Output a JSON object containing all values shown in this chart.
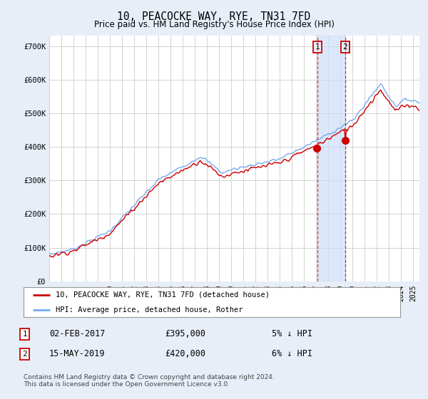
{
  "title": "10, PEACOCKE WAY, RYE, TN31 7FD",
  "subtitle": "Price paid vs. HM Land Registry's House Price Index (HPI)",
  "yticks": [
    0,
    100000,
    200000,
    300000,
    400000,
    500000,
    600000,
    700000
  ],
  "ytick_labels": [
    "£0",
    "£100K",
    "£200K",
    "£300K",
    "£400K",
    "£500K",
    "£600K",
    "£700K"
  ],
  "hpi_color": "#7aaaee",
  "price_color": "#cc0000",
  "marker1_x": 2017.08,
  "marker2_x": 2019.37,
  "marker1_price": 395000,
  "marker2_price": 420000,
  "marker1_date": "02-FEB-2017",
  "marker2_date": "15-MAY-2019",
  "marker1_pct": "5% ↓ HPI",
  "marker2_pct": "6% ↓ HPI",
  "legend_line1": "10, PEACOCKE WAY, RYE, TN31 7FD (detached house)",
  "legend_line2": "HPI: Average price, detached house, Rother",
  "footnote": "Contains HM Land Registry data © Crown copyright and database right 2024.\nThis data is licensed under the Open Government Licence v3.0.",
  "bg_color": "#e8eef8",
  "plot_bg": "#ffffff",
  "grid_color": "#cccccc",
  "shade_color": "#ccddf8",
  "ylim_low": 0,
  "ylim_high": 730000,
  "xlim_low": 1995,
  "xlim_high": 2025.5
}
